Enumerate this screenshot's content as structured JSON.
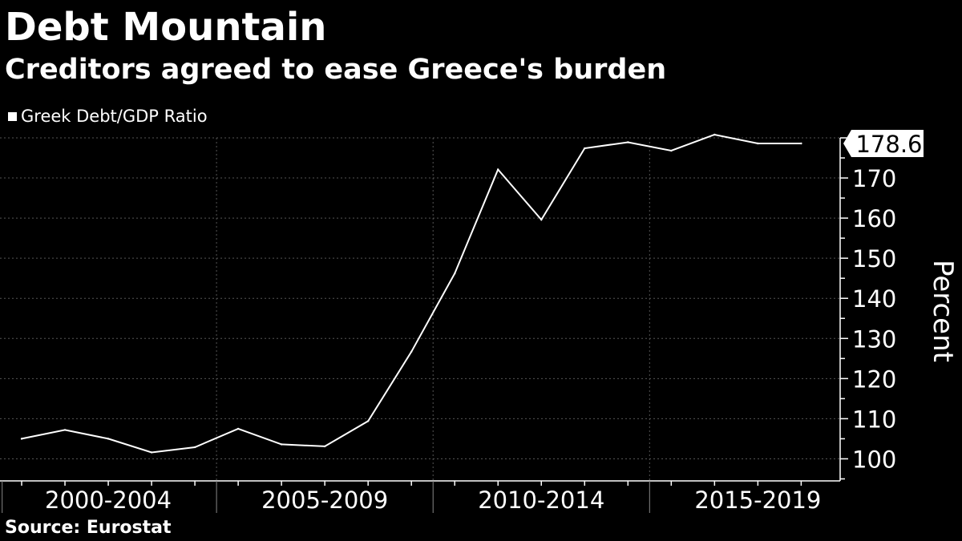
{
  "header": {
    "title": "Debt Mountain",
    "subtitle": "Creditors agreed to ease Greece's burden"
  },
  "footer": {
    "source": "Source: Eurostat"
  },
  "colors": {
    "background": "#000000",
    "line": "#ffffff",
    "grid": "#555555"
  },
  "chart_data": {
    "type": "line",
    "title": "Debt Mountain",
    "subtitle": "Creditors agreed to ease Greece's burden",
    "legend": [
      "Greek Debt/GDP Ratio"
    ],
    "legend_position": "top-left",
    "xlabel": "",
    "ylabel": "Percent",
    "x_group_labels": [
      "2000-2004",
      "2005-2009",
      "2010-2014",
      "2015-2019"
    ],
    "y_ticks": [
      100,
      110,
      120,
      130,
      140,
      150,
      160,
      170
    ],
    "ylim": [
      94.5,
      180
    ],
    "last_value_label": "178.6",
    "grid": true,
    "series": [
      {
        "name": "Greek Debt/GDP Ratio",
        "x": [
          1999,
          2000,
          2001,
          2002,
          2003,
          2004,
          2005,
          2006,
          2007,
          2008,
          2009,
          2010,
          2011,
          2012,
          2013,
          2014,
          2015,
          2016,
          2017
        ],
        "values": [
          105.0,
          107.2,
          105.0,
          101.6,
          102.9,
          107.5,
          103.6,
          103.1,
          109.4,
          126.7,
          146.2,
          172.1,
          159.6,
          177.4,
          178.9,
          176.8,
          180.8,
          178.6,
          178.6
        ]
      }
    ]
  }
}
